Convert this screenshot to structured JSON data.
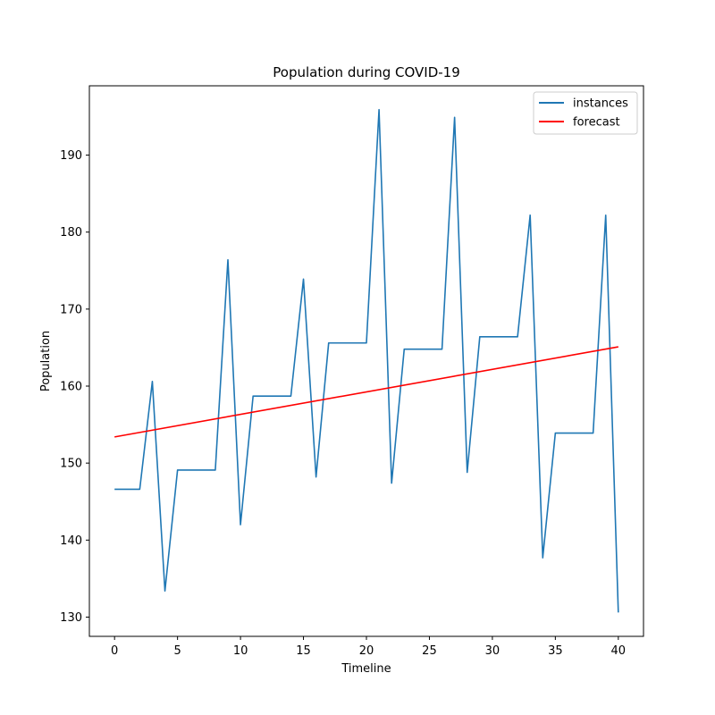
{
  "chart_data": {
    "type": "line",
    "title": "Population during COVID-19",
    "xlabel": "Timeline",
    "ylabel": "Population",
    "xlim": [
      -2,
      42
    ],
    "ylim": [
      127.5,
      199.0
    ],
    "xticks": [
      0,
      5,
      10,
      15,
      20,
      25,
      30,
      35,
      40
    ],
    "yticks": [
      130,
      140,
      150,
      160,
      170,
      180,
      190
    ],
    "grid": false,
    "legend_position": "top-right",
    "series": [
      {
        "name": "instances",
        "color": "#1f77b4",
        "x": [
          0,
          1,
          2,
          3,
          4,
          5,
          6,
          7,
          8,
          9,
          10,
          11,
          12,
          13,
          14,
          15,
          16,
          17,
          18,
          19,
          20,
          21,
          22,
          23,
          24,
          25,
          26,
          27,
          28,
          29,
          30,
          31,
          32,
          33,
          34,
          35,
          36,
          37,
          38,
          39,
          40
        ],
        "values": [
          146.6,
          146.6,
          146.6,
          160.6,
          133.4,
          149.1,
          149.1,
          149.1,
          149.1,
          176.4,
          142.0,
          158.7,
          158.7,
          158.7,
          158.7,
          173.9,
          148.2,
          165.6,
          165.6,
          165.6,
          165.6,
          195.9,
          147.4,
          164.8,
          164.8,
          164.8,
          164.8,
          194.9,
          148.8,
          166.4,
          166.4,
          166.4,
          166.4,
          182.2,
          137.7,
          153.9,
          153.9,
          153.9,
          153.9,
          182.2,
          130.6
        ]
      },
      {
        "name": "forecast",
        "color": "#ff0000",
        "x": [
          0,
          40
        ],
        "values": [
          153.4,
          165.1
        ]
      }
    ]
  }
}
